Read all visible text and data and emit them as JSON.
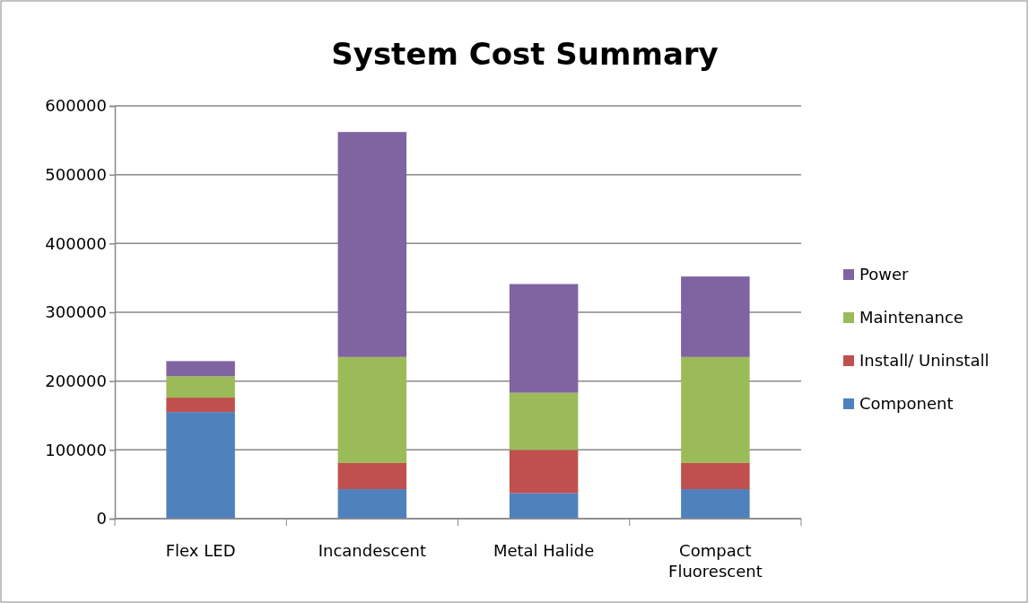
{
  "chart_data": {
    "type": "bar",
    "title": "System Cost Summary",
    "stacked": true,
    "categories": [
      "Flex LED",
      "Incandescent",
      "Metal Halide",
      "Compact Fluorescent"
    ],
    "series": [
      {
        "name": "Component",
        "color": "#4f81bd",
        "values": [
          155000,
          43000,
          37000,
          43000
        ]
      },
      {
        "name": "Install/ Uninstall",
        "color": "#c0504d",
        "values": [
          21000,
          38000,
          63000,
          38000
        ]
      },
      {
        "name": "Maintenance",
        "color": "#9bbb59",
        "values": [
          31000,
          154000,
          83000,
          154000
        ]
      },
      {
        "name": "Power",
        "color": "#8064a2",
        "values": [
          22000,
          327000,
          158000,
          117000
        ]
      }
    ],
    "ylim": [
      0,
      600000
    ],
    "yticks": [
      0,
      100000,
      200000,
      300000,
      400000,
      500000,
      600000
    ],
    "grid": "y",
    "legend": "right"
  }
}
